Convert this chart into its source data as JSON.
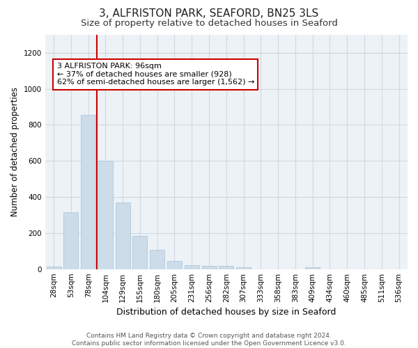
{
  "title": "3, ALFRISTON PARK, SEAFORD, BN25 3LS",
  "subtitle": "Size of property relative to detached houses in Seaford",
  "xlabel": "Distribution of detached houses by size in Seaford",
  "ylabel": "Number of detached properties",
  "bar_labels": [
    "28sqm",
    "53sqm",
    "78sqm",
    "104sqm",
    "129sqm",
    "155sqm",
    "180sqm",
    "205sqm",
    "231sqm",
    "256sqm",
    "282sqm",
    "307sqm",
    "333sqm",
    "358sqm",
    "383sqm",
    "409sqm",
    "434sqm",
    "460sqm",
    "485sqm",
    "511sqm",
    "536sqm"
  ],
  "bar_values": [
    15,
    315,
    855,
    600,
    370,
    185,
    105,
    47,
    22,
    18,
    20,
    10,
    0,
    0,
    0,
    12,
    0,
    0,
    0,
    0,
    0
  ],
  "bar_color": "#ccdce8",
  "bar_edgecolor": "#aac0d4",
  "vline_index": 2.5,
  "vline_color": "#cc0000",
  "annotation_text": "3 ALFRISTON PARK: 96sqm\n← 37% of detached houses are smaller (928)\n62% of semi-detached houses are larger (1,562) →",
  "annotation_box_facecolor": "#ffffff",
  "annotation_box_edgecolor": "#cc0000",
  "ylim": [
    0,
    1300
  ],
  "yticks": [
    0,
    200,
    400,
    600,
    800,
    1000,
    1200
  ],
  "grid_color": "#d0d8e0",
  "background_color": "#edf2f7",
  "footer_line1": "Contains HM Land Registry data © Crown copyright and database right 2024.",
  "footer_line2": "Contains public sector information licensed under the Open Government Licence v3.0.",
  "title_fontsize": 11,
  "subtitle_fontsize": 9.5,
  "xlabel_fontsize": 9,
  "ylabel_fontsize": 8.5,
  "tick_fontsize": 7.5,
  "annotation_fontsize": 8,
  "footer_fontsize": 6.5
}
